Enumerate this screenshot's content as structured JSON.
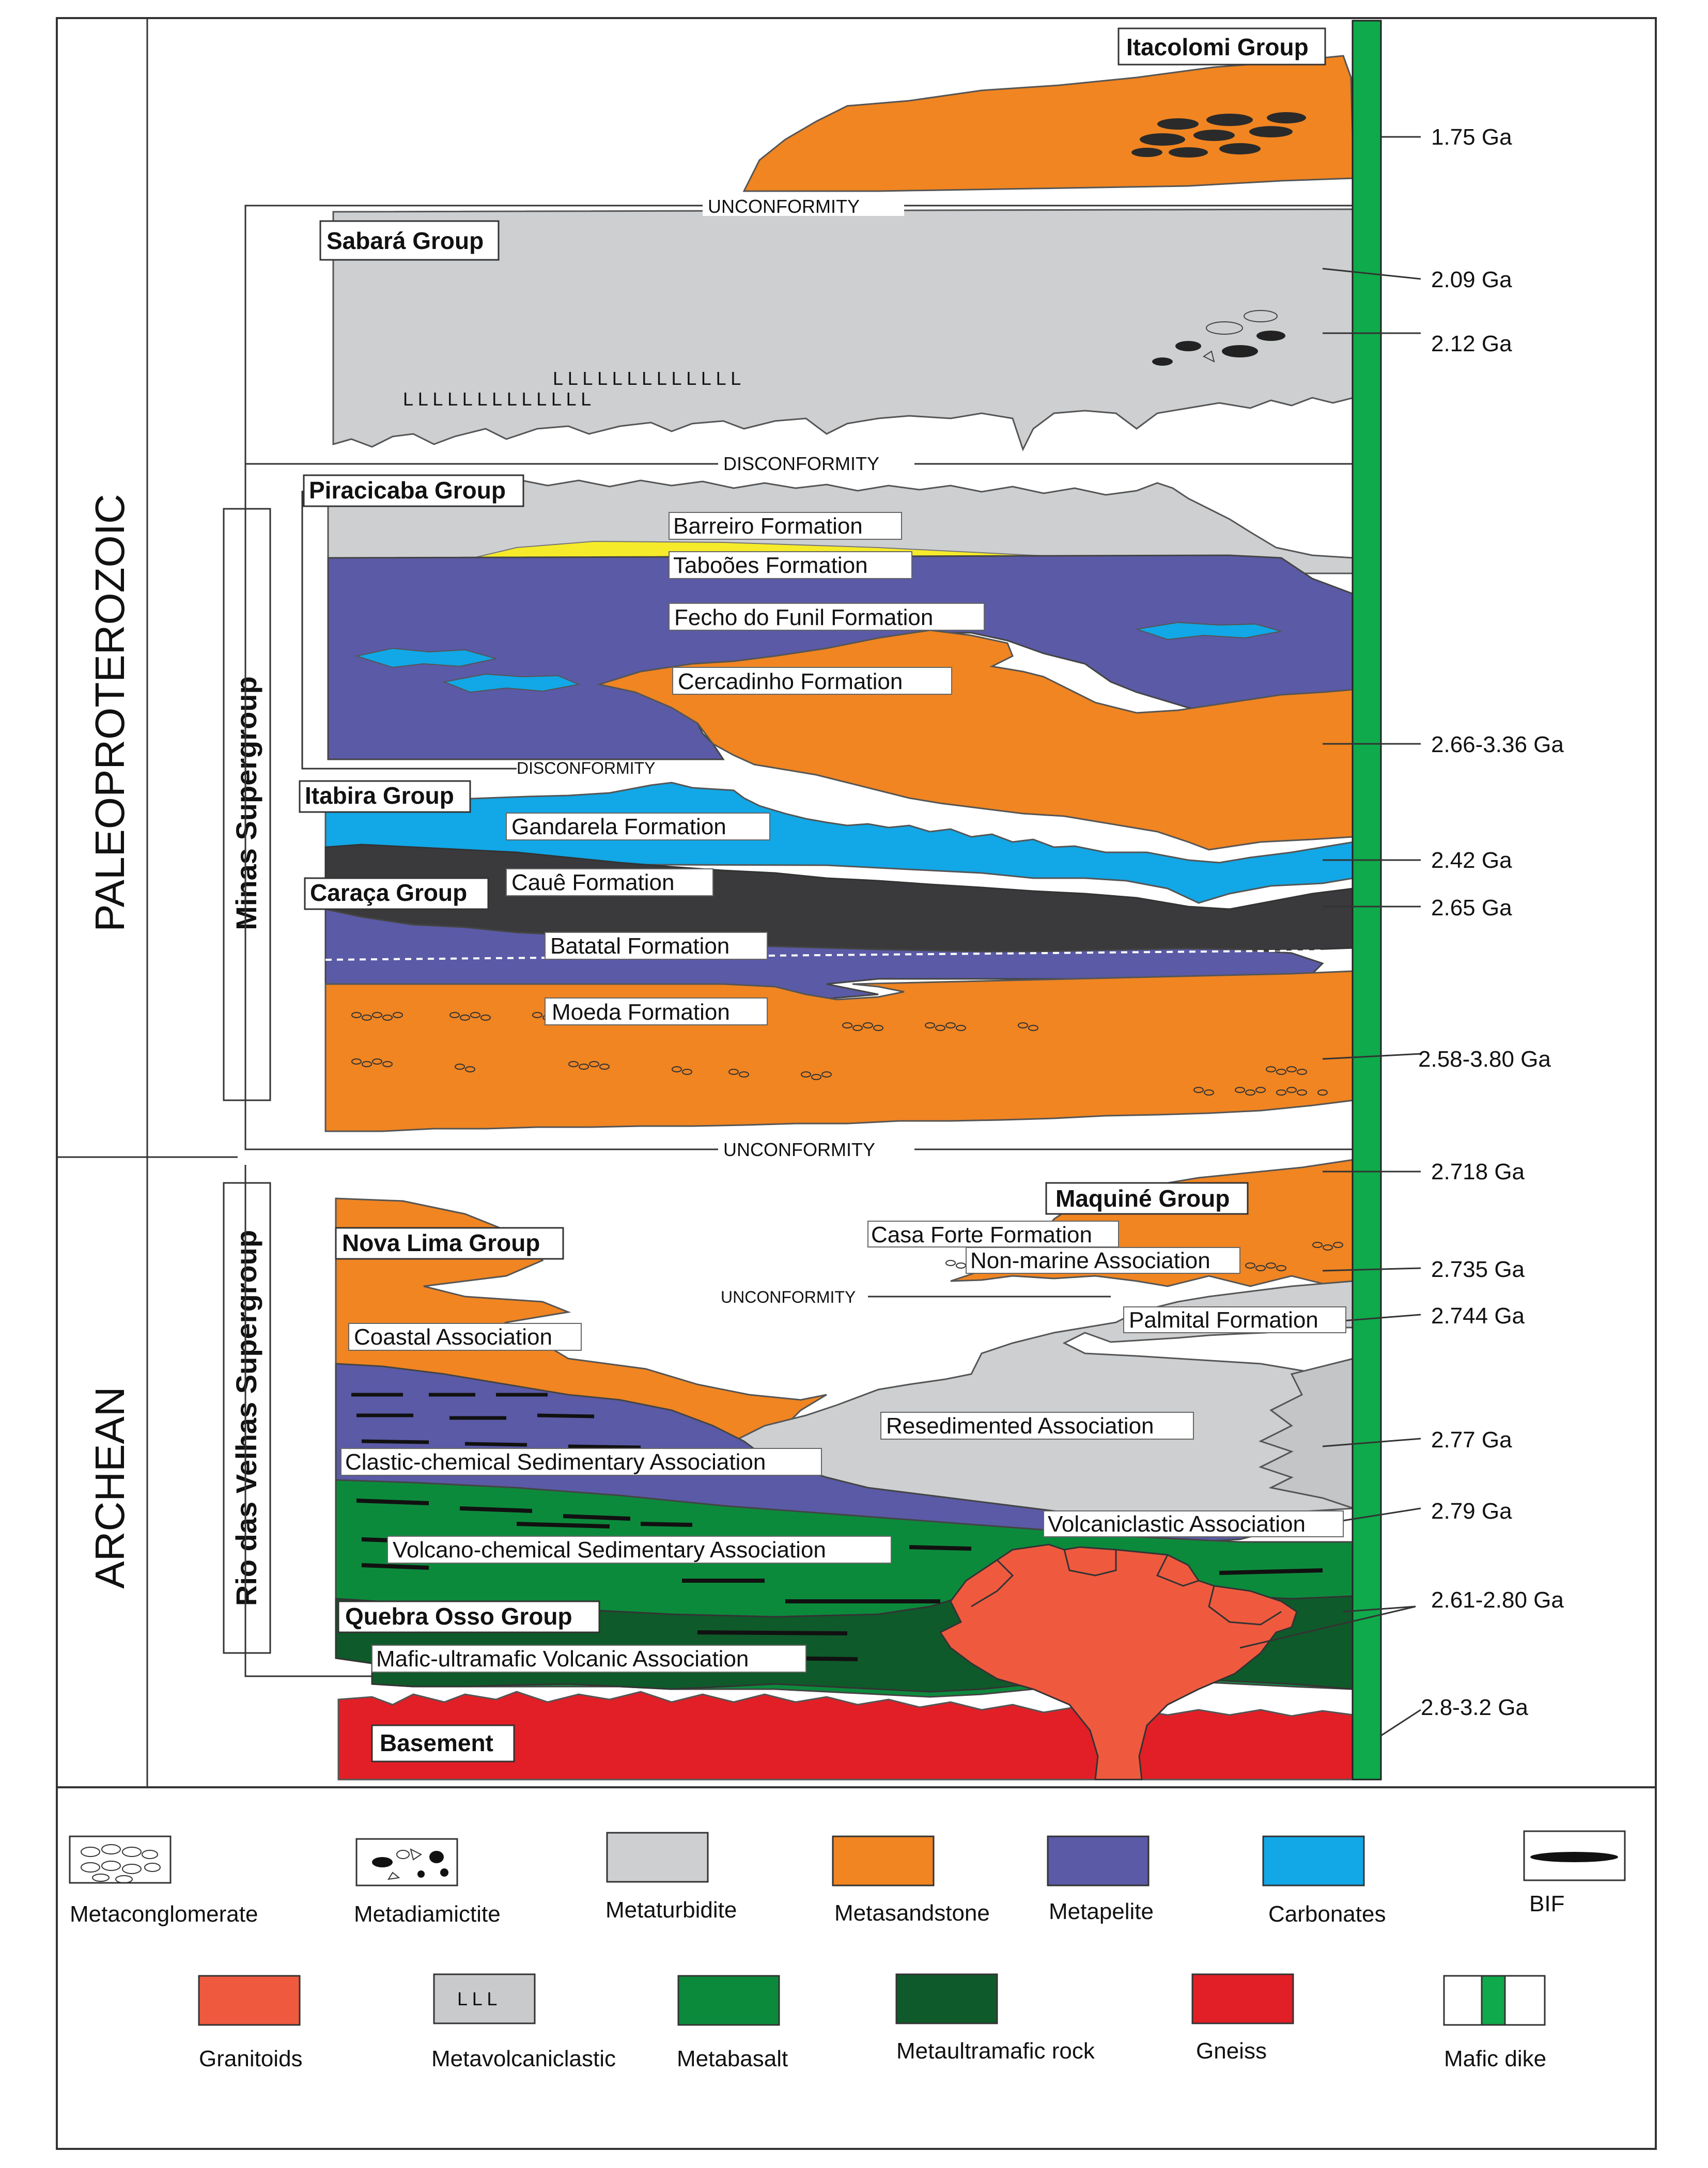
{
  "eras": {
    "paleoproterozoic": "PALEOPROTEROZOIC",
    "archean": "ARCHEAN"
  },
  "supergroups": {
    "minas": "Minas Supergroup",
    "rio_das_velhas": "Rio das Velhas Supergroup"
  },
  "groups": {
    "itacolomi": "Itacolomi Group",
    "sabara": "Sabará Group",
    "piracicaba": "Piracicaba Group",
    "itabira": "Itabira Group",
    "caraca": "Caraça Group",
    "maquine": "Maquiné Group",
    "nova_lima": "Nova Lima Group",
    "quebra_osso": "Quebra Osso Group",
    "basement": "Basement"
  },
  "formations": {
    "barreiro": "Barreiro Formation",
    "taboes": "Taboões Formation",
    "fecho": "Fecho do Funil Formation",
    "cercadinho": "Cercadinho Formation",
    "gandarela": "Gandarela Formation",
    "caue": "Cauê Formation",
    "batatal": "Batatal Formation",
    "moeda": "Moeda Formation",
    "casa_forte": "Casa Forte Formation",
    "non_marine": "Non-marine Association",
    "palmital": "Palmital Formation",
    "coastal": "Coastal Association",
    "resedimented": "Resedimented Association",
    "clastic": "Clastic-chemical Sedimentary Association",
    "volcaniclastic": "Volcaniclastic Association",
    "volcano_chemical": "Volcano-chemical Sedimentary Association",
    "mafic_ultramafic": "Mafic-ultramafic Volcanic Association"
  },
  "contacts": {
    "unconformity_top": "UNCONFORMITY",
    "disconformity_top": "DISCONFORMITY",
    "disconformity_mid": "DISCONFORMITY",
    "unconformity_mid": "UNCONFORMITY",
    "unconformity_low": "UNCONFORMITY"
  },
  "ages": {
    "a175": "1.75 Ga",
    "a209": "2.09 Ga",
    "a212": "2.12 Ga",
    "a266": "2.66-3.36 Ga",
    "a242": "2.42 Ga",
    "a265": "2.65 Ga",
    "a258": "2.58-3.80 Ga",
    "a2718": "2.718 Ga",
    "a2735": "2.735 Ga",
    "a2744": "2.744 Ga",
    "a277": "2.77 Ga",
    "a279": "2.79 Ga",
    "a261": "2.61-2.80 Ga",
    "a28": "2.8-3.2 Ga"
  },
  "legend": {
    "metaconglomerate": "Metaconglomerate",
    "metadiamictite": "Metadiamictite",
    "metaturbidite": "Metaturbidite",
    "metasandstone": "Metasandstone",
    "metapelite": "Metapelite",
    "carbonates": "Carbonates",
    "bif": "BIF",
    "granitoids": "Granitoids",
    "metavolcaniclastic": "Metavolcaniclastic",
    "metabasalt": "Metabasalt",
    "metaultramafic": "Metaultramafic rock",
    "gneiss": "Gneiss",
    "mafic_dike": "Mafic dike"
  },
  "colors": {
    "metaturbidite": "#cdcfd1",
    "metasandstone": "#f08522",
    "metapelite": "#5a5aa6",
    "carbonates": "#12a7e6",
    "bif": "#111111",
    "granitoids": "#ef5a3f",
    "metavolcaniclastic": "#c9cacc",
    "metabasalt": "#0c8a3c",
    "metaultramafic": "#0f5a2a",
    "gneiss": "#e21f26",
    "mafic_dike": "#0faa4b",
    "yellow": "#f6eb2a",
    "caue": "#3a3a3c"
  }
}
